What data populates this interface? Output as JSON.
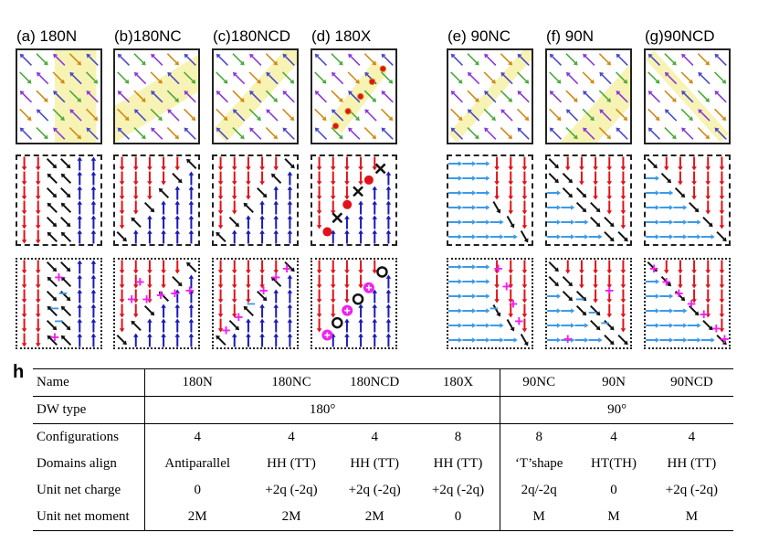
{
  "panels": [
    {
      "letter": "(a)",
      "name": "180N"
    },
    {
      "letter": "(b)",
      "name": "180NC"
    },
    {
      "letter": "(c)",
      "name": "180NCD"
    },
    {
      "letter": "(d)",
      "name": "180X"
    },
    {
      "letter": "(e)",
      "name": "90NC"
    },
    {
      "letter": "(f)",
      "name": "90N"
    },
    {
      "letter": "(g)",
      "name": "90NCD"
    }
  ],
  "charge_symbols": {
    "plus": "+",
    "minus": "−"
  },
  "colors": {
    "red": "#e0121a",
    "blue": "#1a1ab5",
    "light_blue": "#3d9ae8",
    "black": "#111111",
    "magenta": "#ee22ee",
    "yellow_band": "#f7f3b4",
    "purple": "#8a3ad6",
    "green": "#4caa3c",
    "orange": "#d08a16",
    "indigo": "#4a4ac8",
    "gray": "#8a8a8a"
  },
  "table": {
    "label": "h",
    "header": [
      "Name",
      "180N",
      "180NC",
      "180NCD",
      "180X",
      "90NC",
      "90N",
      "90NCD"
    ],
    "dw_type": {
      "label": "DW type",
      "group180": "180°",
      "group90": "90°"
    },
    "rows": [
      [
        "Configurations",
        "4",
        "4",
        "4",
        "8",
        "8",
        "4",
        "4"
      ],
      [
        "Domains align",
        "Antiparallel",
        "HH (TT)",
        "HH  (TT)",
        "HH  (TT)",
        "‘T’shape",
        "HT(TH)",
        "HH (TT)"
      ],
      [
        "Unit net charge",
        "0",
        "+2q (-2q)",
        "+2q (-2q)",
        "+2q (-2q)",
        "2q/-2q",
        "0",
        "+2q (-2q)"
      ],
      [
        "Unit net moment",
        "2M",
        "2M",
        "2M",
        "0",
        "M",
        "M",
        "M"
      ]
    ]
  }
}
